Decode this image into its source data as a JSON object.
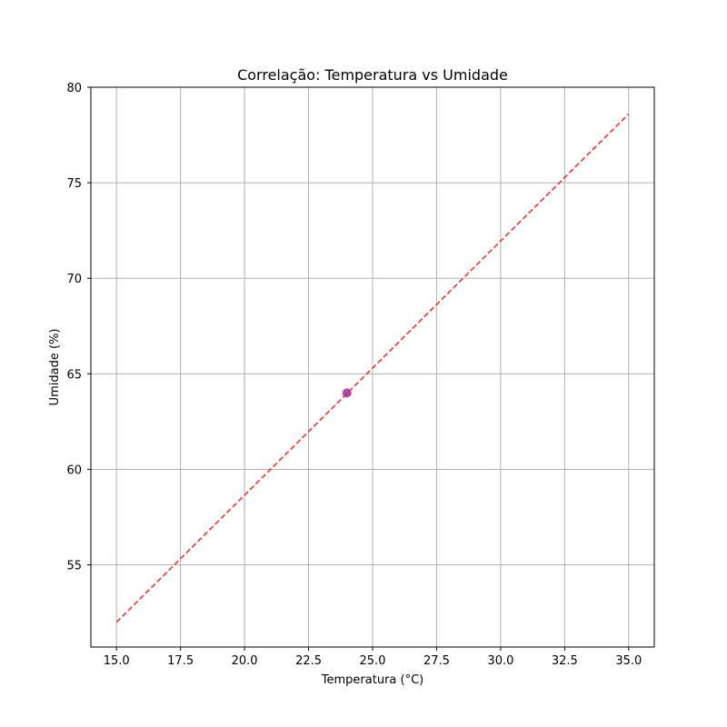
{
  "chart_data": {
    "type": "scatter",
    "title": "Correlação: Temperatura vs Umidade",
    "xlabel": "Temperatura (°C)",
    "ylabel": "Umidade (%)",
    "xlim": [
      14.0,
      36.0
    ],
    "ylim": [
      50.7,
      80.0
    ],
    "xticks": [
      15.0,
      17.5,
      20.0,
      22.5,
      25.0,
      27.5,
      30.0,
      32.5,
      35.0
    ],
    "xtick_labels": [
      "15.0",
      "17.5",
      "20.0",
      "22.5",
      "25.0",
      "27.5",
      "30.0",
      "32.5",
      "35.0"
    ],
    "yticks": [
      55,
      60,
      65,
      70,
      75,
      80
    ],
    "ytick_labels": [
      "55",
      "60",
      "65",
      "70",
      "75",
      "80"
    ],
    "grid": true,
    "points": [
      {
        "x": 24.0,
        "y": 64.0
      }
    ],
    "trendline": {
      "x": [
        15.0,
        35.0
      ],
      "y": [
        52.0,
        78.6
      ],
      "style": "dashed"
    },
    "colors": {
      "point_fill": "#9b2d9e",
      "point_edge": "#d04090",
      "trendline": "#ee3333",
      "grid": "#b0b0b0",
      "axes": "#000000"
    }
  }
}
